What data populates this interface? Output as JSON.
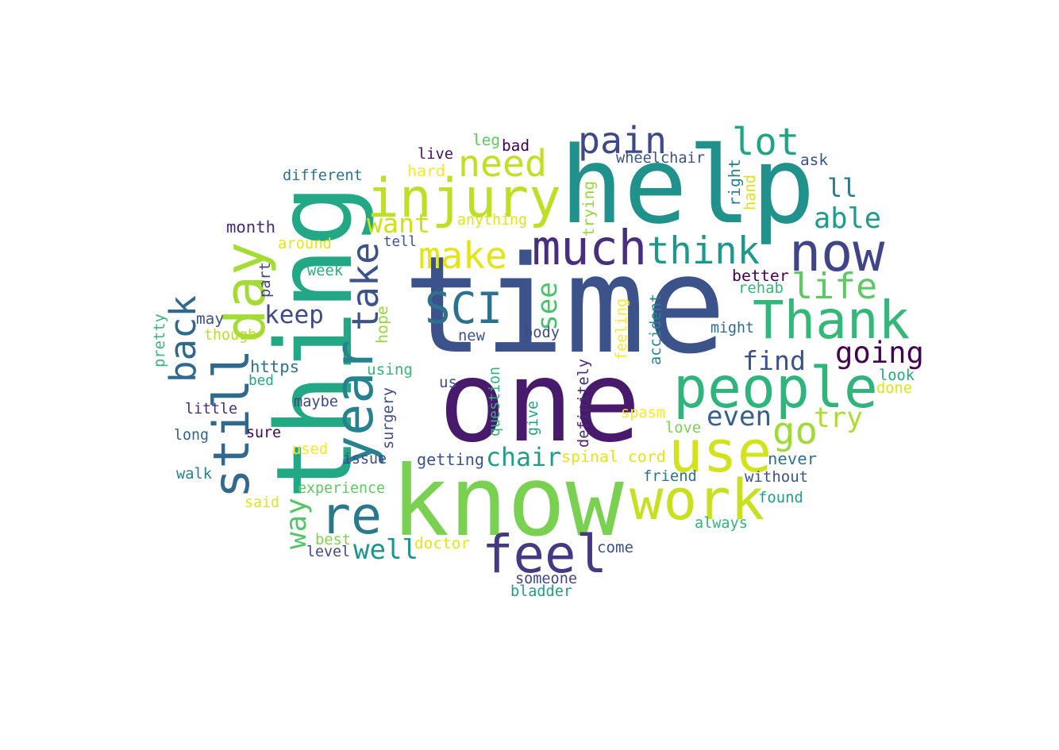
{
  "word_cloud": {
    "words": [
      {
        "text": "time",
        "color": "#3b528b"
      },
      {
        "text": "one",
        "color": "#481a6c"
      },
      {
        "text": "know",
        "color": "#7ad151"
      },
      {
        "text": "help",
        "color": "#21918c"
      },
      {
        "text": "thing",
        "color": "#22a884"
      },
      {
        "text": "use",
        "color": "#d2e21b"
      },
      {
        "text": "people",
        "color": "#2fb47c"
      },
      {
        "text": "feel",
        "color": "#443a83"
      },
      {
        "text": "injury",
        "color": "#bddf26"
      },
      {
        "text": "work",
        "color": "#c8e020"
      },
      {
        "text": "Thank",
        "color": "#35b779"
      },
      {
        "text": "much",
        "color": "#472f7d"
      },
      {
        "text": "re",
        "color": "#2a788e"
      },
      {
        "text": "still",
        "color": "#31688e"
      },
      {
        "text": "now",
        "color": "#414487"
      },
      {
        "text": "year",
        "color": "#26828e"
      },
      {
        "text": "day",
        "color": "#a5db36"
      },
      {
        "text": "think",
        "color": "#1f988b"
      },
      {
        "text": "SCI",
        "color": "#2c728e"
      },
      {
        "text": "need",
        "color": "#c2df23"
      },
      {
        "text": "pain",
        "color": "#3e4989"
      },
      {
        "text": "lot",
        "color": "#20a486"
      },
      {
        "text": "life",
        "color": "#5ec962"
      },
      {
        "text": "back",
        "color": "#31688e"
      },
      {
        "text": "go",
        "color": "#a0da39"
      },
      {
        "text": "make",
        "color": "#e5e419"
      },
      {
        "text": "take",
        "color": "#3b528b"
      },
      {
        "text": "going",
        "color": "#440154"
      },
      {
        "text": "want",
        "color": "#d0e11c"
      },
      {
        "text": "able",
        "color": "#1e9c89"
      },
      {
        "text": "well",
        "color": "#1f948c"
      },
      {
        "text": "chair",
        "color": "#1f9e89"
      },
      {
        "text": "even",
        "color": "#355f8d"
      },
      {
        "text": "try",
        "color": "#addc30"
      },
      {
        "text": "find",
        "color": "#3b528b"
      },
      {
        "text": "keep",
        "color": "#3e4a89"
      },
      {
        "text": "way",
        "color": "#54c568"
      },
      {
        "text": "see",
        "color": "#4ac16d"
      },
      {
        "text": "ll",
        "color": "#2a788e"
      },
      {
        "text": "https",
        "color": "#2c718e"
      },
      {
        "text": "month",
        "color": "#482878"
      },
      {
        "text": "different",
        "color": "#2c728e"
      },
      {
        "text": "anything",
        "color": "#dfe318"
      },
      {
        "text": "around",
        "color": "#e7e419"
      },
      {
        "text": "tell",
        "color": "#3b528b"
      },
      {
        "text": "week",
        "color": "#29af7f"
      },
      {
        "text": "part",
        "color": "#414487"
      },
      {
        "text": "may",
        "color": "#3b528b"
      },
      {
        "text": "though",
        "color": "#b5de2b"
      },
      {
        "text": "pretty",
        "color": "#35b779"
      },
      {
        "text": "bed",
        "color": "#22a785"
      },
      {
        "text": "little",
        "color": "#472c7a"
      },
      {
        "text": "long",
        "color": "#33638d"
      },
      {
        "text": "walk",
        "color": "#27808e"
      },
      {
        "text": "said",
        "color": "#e2e418"
      },
      {
        "text": "used",
        "color": "#fde725"
      },
      {
        "text": "sure",
        "color": "#440154"
      },
      {
        "text": "maybe",
        "color": "#404688"
      },
      {
        "text": "issue",
        "color": "#3e4989"
      },
      {
        "text": "experience",
        "color": "#5ec962"
      },
      {
        "text": "level",
        "color": "#3f4788"
      },
      {
        "text": "best",
        "color": "#84d44b"
      },
      {
        "text": "doctor",
        "color": "#e5e419"
      },
      {
        "text": "getting",
        "color": "#3b528b"
      },
      {
        "text": "surgery",
        "color": "#3e4c8a"
      },
      {
        "text": "using",
        "color": "#37b878"
      },
      {
        "text": "hope",
        "color": "#95d840"
      },
      {
        "text": "new",
        "color": "#3b528b"
      },
      {
        "text": "us",
        "color": "#3b528b"
      },
      {
        "text": "body",
        "color": "#3e4989"
      },
      {
        "text": "question",
        "color": "#2db27d"
      },
      {
        "text": "give",
        "color": "#20a386"
      },
      {
        "text": "definitely",
        "color": "#482878"
      },
      {
        "text": "spinal cord",
        "color": "#e5e419"
      },
      {
        "text": "spasm",
        "color": "#fde725"
      },
      {
        "text": "friend",
        "color": "#2c728e"
      },
      {
        "text": "feeling",
        "color": "#fde725"
      },
      {
        "text": "accident",
        "color": "#25858e"
      },
      {
        "text": "might",
        "color": "#31688e"
      },
      {
        "text": "better",
        "color": "#440154"
      },
      {
        "text": "rehab",
        "color": "#35b779"
      },
      {
        "text": "love",
        "color": "#7ad151"
      },
      {
        "text": "never",
        "color": "#2c728e"
      },
      {
        "text": "without",
        "color": "#3b528b"
      },
      {
        "text": "found",
        "color": "#1f9e89"
      },
      {
        "text": "always",
        "color": "#2fb47c"
      },
      {
        "text": "come",
        "color": "#3b528b"
      },
      {
        "text": "someone",
        "color": "#414487"
      },
      {
        "text": "bladder",
        "color": "#1f9e89"
      },
      {
        "text": "look",
        "color": "#22a884"
      },
      {
        "text": "done",
        "color": "#dde318"
      },
      {
        "text": "trying",
        "color": "#95d840"
      },
      {
        "text": "hand",
        "color": "#d8e219"
      },
      {
        "text": "right",
        "color": "#277f8e"
      },
      {
        "text": "ask",
        "color": "#3b528b"
      },
      {
        "text": "wheelchair",
        "color": "#3b528b"
      },
      {
        "text": "live",
        "color": "#471063"
      },
      {
        "text": "hard",
        "color": "#fde725"
      },
      {
        "text": "leg",
        "color": "#5ec962"
      },
      {
        "text": "bad",
        "color": "#440154"
      }
    ]
  }
}
